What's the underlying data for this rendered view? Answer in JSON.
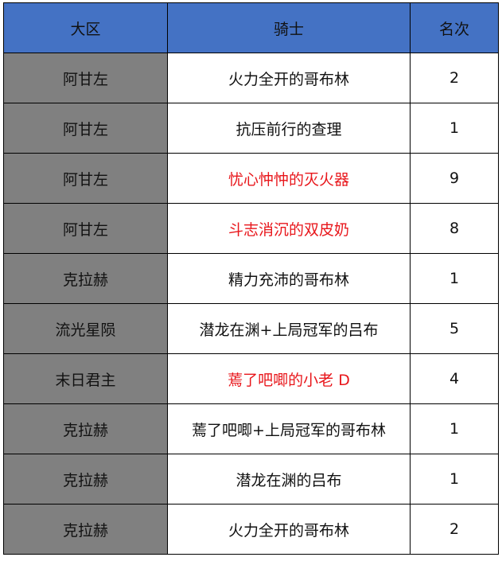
{
  "colors": {
    "header": "#4472C4",
    "region": "#808080",
    "highlight": "#E8161B"
  },
  "headers": [
    "大区",
    "骑士",
    "名次"
  ],
  "rows": [
    {
      "region": "阿甘左",
      "knight": "火力全开的哥布林",
      "rank": "2",
      "highlight": false
    },
    {
      "region": "阿甘左",
      "knight": "抗压前行的查理",
      "rank": "1",
      "highlight": false
    },
    {
      "region": "阿甘左",
      "knight": "忧心忡忡的灭火器",
      "rank": "9",
      "highlight": true
    },
    {
      "region": "阿甘左",
      "knight": "斗志消沉的双皮奶",
      "rank": "8",
      "highlight": true
    },
    {
      "region": "克拉赫",
      "knight": "精力充沛的哥布林",
      "rank": "1",
      "highlight": false
    },
    {
      "region": "流光星陨",
      "knight": "潜龙在渊+上局冠军的吕布",
      "rank": "5",
      "highlight": false
    },
    {
      "region": "末日君主",
      "knight": "蔫了吧唧的小老 D",
      "rank": "4",
      "highlight": true
    },
    {
      "region": "克拉赫",
      "knight": "蔫了吧唧+上局冠军的哥布林",
      "rank": "1",
      "highlight": false
    },
    {
      "region": "克拉赫",
      "knight": "潜龙在渊的吕布",
      "rank": "1",
      "highlight": false
    },
    {
      "region": "克拉赫",
      "knight": "火力全开的哥布林",
      "rank": "2",
      "highlight": false
    }
  ]
}
